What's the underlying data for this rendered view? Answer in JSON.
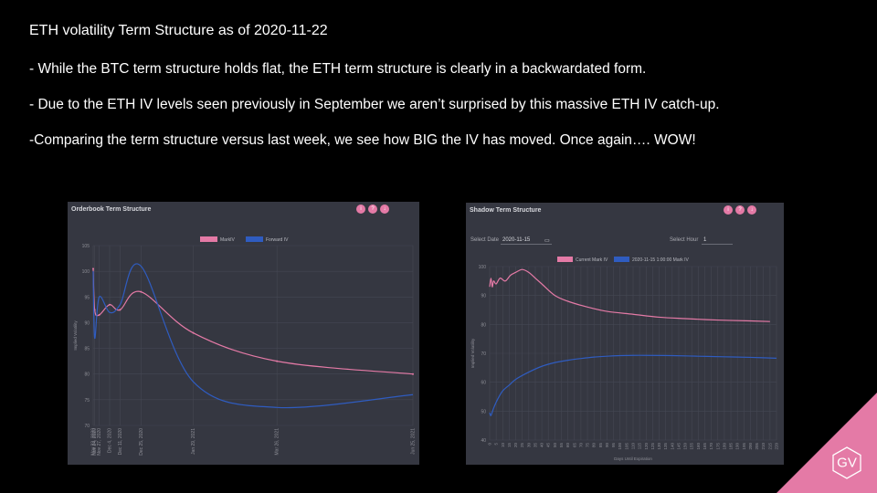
{
  "slide": {
    "title": "ETH volatility Term Structure as of 2020-11-22",
    "bullets": [
      "- While the BTC term structure holds flat, the ETH term structure is clearly in a backwardated form.",
      "- Due to the ETH IV levels seen previously in September we aren’t surprised by this massive ETH IV catch-up.",
      "-Comparing the term structure versus last week, we see how BIG the IV has moved. Once again…. WOW!"
    ]
  },
  "colors": {
    "pink": "#e47aa6",
    "blue": "#2f5cc0",
    "panel": "#353741",
    "logo": "#e47aa6"
  },
  "logo": {
    "text": "GV"
  },
  "left_panel": {
    "title": "Orderbook Term Structure",
    "icons": [
      "info-icon",
      "help-icon",
      "download-icon"
    ]
  },
  "right_panel": {
    "title": "Shadow Term Structure",
    "icons": [
      "info-icon",
      "help-icon",
      "download-icon"
    ],
    "select_date_label": "Select Date",
    "select_date_value": "2020-11-15",
    "select_hour_label": "Select Hour",
    "select_hour_value": "1"
  },
  "chart_data": [
    {
      "type": "line",
      "title": "Orderbook Term Structure",
      "ylabel": "Implied Volatility",
      "xlabel": "",
      "ylim": [
        70,
        105
      ],
      "yticks": [
        70,
        75,
        80,
        85,
        90,
        95,
        100,
        105
      ],
      "categories": [
        "Nov 23, 2020",
        "Nov 24, 2020",
        "Nov 27, 2020",
        "Dec 4, 2020",
        "Dec 11, 2020",
        "Dec 25, 2020",
        "Jan 29, 2021",
        "Mar 26, 2021",
        "Jun 25, 2021"
      ],
      "x_days": [
        1,
        2,
        5,
        12,
        19,
        33,
        68,
        124,
        215
      ],
      "legend_position": "top-center",
      "grid": true,
      "series": [
        {
          "name": "MarkIV",
          "color": "#e47aa6",
          "values": [
            100.5,
            92.5,
            91.5,
            93.5,
            92.5,
            96.0,
            88.0,
            82.5,
            80.0
          ]
        },
        {
          "name": "Forward IV",
          "color": "#2f5cc0",
          "values": [
            100.0,
            87.0,
            95.0,
            92.0,
            93.5,
            101.0,
            78.5,
            73.5,
            76.0
          ]
        }
      ]
    },
    {
      "type": "line",
      "title": "Shadow Term Structure",
      "ylabel": "Implied Volatility",
      "xlabel": "Days Until Expiration",
      "ylim": [
        40,
        100
      ],
      "yticks": [
        40,
        50,
        60,
        70,
        80,
        90,
        100
      ],
      "xticks": [
        0,
        5,
        10,
        15,
        20,
        25,
        30,
        35,
        40,
        45,
        50,
        55,
        60,
        65,
        70,
        75,
        80,
        85,
        90,
        95,
        100,
        105,
        110,
        115,
        120,
        125,
        130,
        135,
        140,
        145,
        150,
        155,
        160,
        165,
        170,
        175,
        180,
        185,
        190,
        195,
        200,
        205,
        210,
        215,
        220
      ],
      "legend_position": "top-center",
      "grid": true,
      "series": [
        {
          "name": "Current Mark IV",
          "color": "#e47aa6",
          "x": [
            0,
            1,
            2,
            3,
            5,
            8,
            12,
            16,
            20,
            25,
            30,
            35,
            40,
            50,
            60,
            75,
            90,
            110,
            130,
            150,
            175,
            200,
            215
          ],
          "values": [
            93,
            96,
            93,
            95,
            94,
            96,
            95,
            97,
            98,
            99,
            98,
            96,
            94,
            90,
            88,
            86,
            84.5,
            83.5,
            82.5,
            82,
            81.5,
            81.2,
            81
          ]
        },
        {
          "name": "2020-11-15 1:00:00 Mark IV",
          "color": "#2f5cc0",
          "x": [
            0,
            1,
            3,
            6,
            10,
            15,
            20,
            30,
            40,
            50,
            60,
            70,
            80,
            90,
            100,
            110,
            120,
            140,
            160,
            180,
            200,
            220
          ],
          "values": [
            49.5,
            48.5,
            51,
            54,
            57,
            59,
            61,
            63.5,
            65.5,
            66.8,
            67.6,
            68.2,
            68.7,
            69,
            69.2,
            69.3,
            69.3,
            69.2,
            69,
            68.8,
            68.6,
            68.3
          ]
        }
      ]
    }
  ]
}
